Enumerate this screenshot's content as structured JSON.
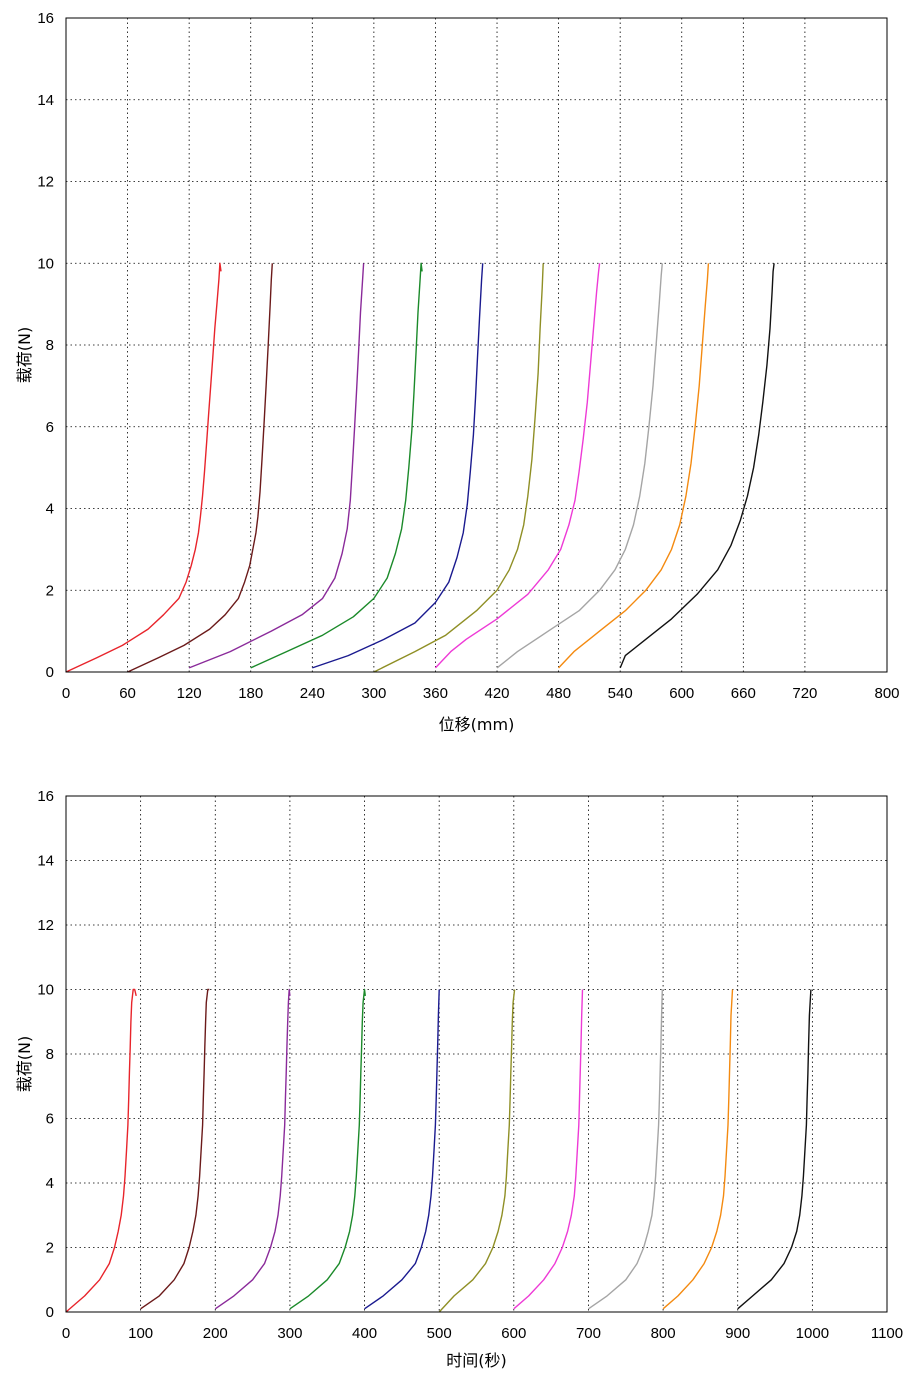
{
  "chart_data": [
    {
      "type": "line",
      "xlabel": "位移(mm)",
      "ylabel": "载荷(N)",
      "xlim": [
        0,
        800
      ],
      "ylim": [
        0,
        16
      ],
      "xticks": [
        0,
        60,
        120,
        180,
        240,
        300,
        360,
        420,
        480,
        540,
        600,
        660,
        720,
        800
      ],
      "yticks": [
        0,
        2,
        4,
        6,
        8,
        10,
        12,
        14,
        16
      ],
      "grid": true,
      "series": [
        {
          "color": "#e8242b",
          "x": [
            0,
            30,
            55,
            80,
            95,
            110,
            117,
            122,
            126,
            129,
            131,
            133,
            135,
            137,
            139,
            141,
            143,
            145,
            147,
            149,
            150,
            151
          ],
          "y": [
            0,
            0.35,
            0.65,
            1.05,
            1.4,
            1.8,
            2.2,
            2.6,
            3.0,
            3.4,
            3.8,
            4.3,
            4.9,
            5.6,
            6.3,
            7.0,
            7.7,
            8.4,
            9.0,
            9.6,
            10.0,
            9.8
          ]
        },
        {
          "color": "#6b1a1a",
          "x": [
            60,
            90,
            115,
            140,
            155,
            168,
            174,
            179,
            182,
            185,
            187,
            189,
            191,
            193,
            195,
            197,
            199,
            200,
            201
          ],
          "y": [
            0,
            0.35,
            0.65,
            1.05,
            1.4,
            1.8,
            2.2,
            2.6,
            3.0,
            3.4,
            3.8,
            4.4,
            5.2,
            6.1,
            7.0,
            8.0,
            9.0,
            9.6,
            10.0
          ]
        },
        {
          "color": "#8a2a9a",
          "x": [
            120,
            160,
            200,
            230,
            250,
            262,
            269,
            274,
            277,
            279,
            281,
            283,
            285,
            287,
            289,
            290
          ],
          "y": [
            0.1,
            0.5,
            1.0,
            1.4,
            1.8,
            2.3,
            2.9,
            3.5,
            4.2,
            5.0,
            5.9,
            6.8,
            7.8,
            8.8,
            9.6,
            10.0
          ]
        },
        {
          "color": "#1b8a2a",
          "x": [
            180,
            215,
            250,
            280,
            300,
            313,
            321,
            327,
            331,
            334,
            337,
            339,
            341,
            343,
            345,
            346,
            347
          ],
          "y": [
            0.1,
            0.5,
            0.9,
            1.35,
            1.8,
            2.3,
            2.9,
            3.5,
            4.2,
            5.0,
            5.9,
            6.8,
            7.8,
            8.8,
            9.6,
            10.0,
            9.8
          ]
        },
        {
          "color": "#1a1a8f",
          "x": [
            240,
            275,
            310,
            340,
            360,
            373,
            381,
            387,
            391,
            394,
            397,
            399,
            401,
            403,
            405,
            406
          ],
          "y": [
            0.1,
            0.4,
            0.8,
            1.2,
            1.7,
            2.2,
            2.8,
            3.4,
            4.1,
            4.9,
            5.8,
            6.7,
            7.7,
            8.7,
            9.6,
            10.0
          ]
        },
        {
          "color": "#8f8f25",
          "x": [
            300,
            340,
            370,
            400,
            420,
            432,
            440,
            446,
            450,
            454,
            457,
            460,
            462,
            464,
            465
          ],
          "y": [
            0,
            0.5,
            0.9,
            1.5,
            2.0,
            2.5,
            3.0,
            3.6,
            4.3,
            5.2,
            6.2,
            7.3,
            8.4,
            9.4,
            10.0
          ]
        },
        {
          "color": "#ee3ad6",
          "x": [
            360,
            375,
            390,
            420,
            450,
            470,
            482,
            490,
            496,
            500,
            504,
            508,
            511,
            514,
            517,
            519,
            520
          ],
          "y": [
            0.1,
            0.5,
            0.8,
            1.3,
            1.9,
            2.5,
            3.0,
            3.6,
            4.2,
            4.9,
            5.7,
            6.6,
            7.5,
            8.4,
            9.3,
            9.8,
            10.0
          ]
        },
        {
          "color": "#a5a5a5",
          "x": [
            420,
            440,
            470,
            500,
            520,
            535,
            545,
            553,
            559,
            564,
            568,
            572,
            575,
            578,
            580,
            581
          ],
          "y": [
            0.1,
            0.5,
            1.0,
            1.5,
            2.0,
            2.5,
            3.0,
            3.6,
            4.3,
            5.1,
            6.0,
            7.0,
            8.0,
            9.0,
            9.7,
            10.0
          ]
        },
        {
          "color": "#f48a10",
          "x": [
            480,
            495,
            520,
            545,
            565,
            580,
            590,
            598,
            604,
            609,
            613,
            617,
            620,
            623,
            625,
            626
          ],
          "y": [
            0.1,
            0.5,
            1.0,
            1.5,
            2.0,
            2.5,
            3.0,
            3.6,
            4.3,
            5.1,
            6.0,
            7.0,
            8.0,
            9.0,
            9.6,
            10.0
          ]
        },
        {
          "color": "#111111",
          "x": [
            540,
            545,
            565,
            590,
            615,
            635,
            648,
            657,
            664,
            670,
            675,
            679,
            683,
            686,
            688,
            689,
            690
          ],
          "y": [
            0.1,
            0.4,
            0.8,
            1.3,
            1.9,
            2.5,
            3.1,
            3.7,
            4.3,
            5.0,
            5.8,
            6.6,
            7.5,
            8.4,
            9.3,
            9.8,
            10.0
          ]
        }
      ]
    },
    {
      "type": "line",
      "xlabel": "时间(秒)",
      "ylabel": "载荷(N)",
      "xlim": [
        0,
        1100
      ],
      "ylim": [
        0,
        16
      ],
      "xticks": [
        0,
        100,
        200,
        300,
        400,
        500,
        600,
        700,
        800,
        900,
        1000,
        1100
      ],
      "yticks": [
        0,
        2,
        4,
        6,
        8,
        10,
        12,
        14,
        16
      ],
      "grid": true,
      "series": [
        {
          "color": "#e8242b",
          "x": [
            0,
            25,
            45,
            58,
            65,
            70,
            74,
            77,
            79,
            81,
            83,
            84,
            85,
            86,
            87,
            88,
            90,
            92,
            94
          ],
          "y": [
            0,
            0.5,
            1.0,
            1.5,
            2.0,
            2.5,
            3.0,
            3.6,
            4.2,
            5.0,
            5.8,
            6.6,
            7.4,
            8.2,
            9.0,
            9.6,
            10.0,
            10.0,
            9.8
          ]
        },
        {
          "color": "#6b1a1a",
          "x": [
            100,
            125,
            145,
            158,
            165,
            170,
            174,
            177,
            179,
            181,
            183,
            184,
            185,
            186,
            187,
            188,
            190,
            192
          ],
          "y": [
            0.1,
            0.5,
            1.0,
            1.5,
            2.0,
            2.5,
            3.0,
            3.6,
            4.2,
            5.0,
            5.8,
            6.6,
            7.4,
            8.2,
            9.0,
            9.6,
            10.0,
            10.0
          ]
        },
        {
          "color": "#8a2a9a",
          "x": [
            200,
            225,
            250,
            266,
            274,
            280,
            284,
            287,
            289,
            291,
            293,
            294,
            295,
            296,
            297,
            298,
            299,
            300
          ],
          "y": [
            0.1,
            0.5,
            1.0,
            1.5,
            2.0,
            2.5,
            3.0,
            3.6,
            4.2,
            5.0,
            5.8,
            6.6,
            7.4,
            8.2,
            9.0,
            9.6,
            10.0,
            9.8
          ]
        },
        {
          "color": "#1b8a2a",
          "x": [
            300,
            325,
            350,
            366,
            374,
            380,
            384,
            387,
            389,
            391,
            393,
            394,
            395,
            396,
            397,
            398,
            400,
            401
          ],
          "y": [
            0.1,
            0.5,
            1.0,
            1.5,
            2.0,
            2.5,
            3.0,
            3.6,
            4.2,
            5.0,
            5.8,
            6.6,
            7.4,
            8.2,
            9.0,
            9.6,
            10.0,
            9.8
          ]
        },
        {
          "color": "#1a1a8f",
          "x": [
            400,
            425,
            450,
            468,
            476,
            482,
            486,
            489,
            491,
            493,
            495,
            496,
            497,
            498,
            499,
            500
          ],
          "y": [
            0.1,
            0.5,
            1.0,
            1.5,
            2.0,
            2.5,
            3.0,
            3.6,
            4.2,
            5.0,
            5.8,
            6.6,
            7.4,
            8.3,
            9.2,
            10.0
          ]
        },
        {
          "color": "#8f8f25",
          "x": [
            500,
            520,
            545,
            562,
            572,
            579,
            584,
            588,
            590,
            592,
            594,
            595,
            596,
            597,
            598,
            599,
            601
          ],
          "y": [
            0,
            0.5,
            1.0,
            1.5,
            2.0,
            2.5,
            3.0,
            3.6,
            4.2,
            5.0,
            5.8,
            6.6,
            7.4,
            8.2,
            9.0,
            9.6,
            10.0
          ]
        },
        {
          "color": "#ee3ad6",
          "x": [
            600,
            620,
            640,
            655,
            665,
            672,
            677,
            681,
            683,
            685,
            687,
            688,
            689,
            690,
            691,
            692
          ],
          "y": [
            0.1,
            0.5,
            1.0,
            1.5,
            2.0,
            2.5,
            3.0,
            3.6,
            4.2,
            5.0,
            5.8,
            6.6,
            7.4,
            8.3,
            9.2,
            10.0
          ]
        },
        {
          "color": "#a5a5a5",
          "x": [
            700,
            725,
            750,
            765,
            774,
            780,
            785,
            788,
            790,
            792,
            794,
            795,
            796,
            797,
            798,
            799
          ],
          "y": [
            0.1,
            0.5,
            1.0,
            1.5,
            2.0,
            2.5,
            3.0,
            3.6,
            4.2,
            5.0,
            5.8,
            6.6,
            7.4,
            8.3,
            9.2,
            10.0
          ]
        },
        {
          "color": "#f48a10",
          "x": [
            800,
            820,
            840,
            855,
            865,
            872,
            877,
            881,
            883,
            885,
            887,
            888,
            889,
            890,
            891,
            893
          ],
          "y": [
            0.1,
            0.5,
            1.0,
            1.5,
            2.0,
            2.5,
            3.0,
            3.6,
            4.2,
            5.0,
            5.8,
            6.6,
            7.4,
            8.3,
            9.2,
            10.0
          ]
        },
        {
          "color": "#111111",
          "x": [
            900,
            920,
            945,
            962,
            972,
            979,
            983,
            986,
            988,
            990,
            992,
            993,
            994,
            995,
            996,
            998
          ],
          "y": [
            0.1,
            0.5,
            1.0,
            1.5,
            2.0,
            2.5,
            3.0,
            3.6,
            4.2,
            5.0,
            5.8,
            6.6,
            7.4,
            8.3,
            9.2,
            10.0
          ]
        }
      ]
    }
  ]
}
